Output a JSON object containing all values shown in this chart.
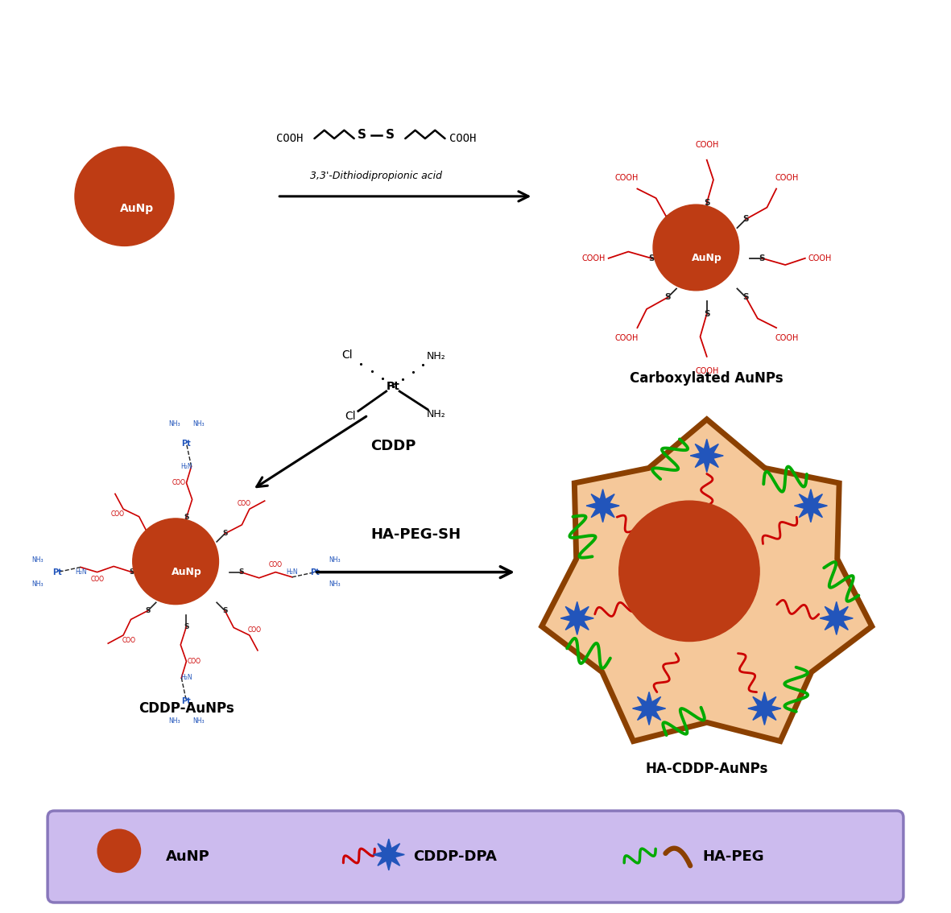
{
  "bg_color": "#ffffff",
  "aunp_color": "#F08020",
  "arrow_color": "#000000",
  "dpa_line_color": "#CC0000",
  "dpa_star_color": "#2255BB",
  "ha_line_color": "#00AA00",
  "ha_outer_color": "#8B4000",
  "ha_fill_color": "#F5C89A",
  "legend_bg": "#CCBBEE",
  "legend_border": "#9988CC",
  "carboxylated_red": "#CC0000",
  "cddp_blue": "#2244AA",
  "title_top_right": "Carboxylated AuNPs",
  "title_bottom_left": "CDDP-AuNPs",
  "title_bottom_right": "HA-CDDP-AuNPs",
  "dpa_label": "3,3'-Dithiodipropionic acid",
  "hapeg_label": "HA-PEG-SH",
  "cddp_label": "CDDP",
  "legend_aunp": "AuNP",
  "legend_cddp_dpa": "CDDP-DPA",
  "legend_ha_peg": "HA-PEG",
  "figure_width": 11.81,
  "figure_height": 11.34
}
